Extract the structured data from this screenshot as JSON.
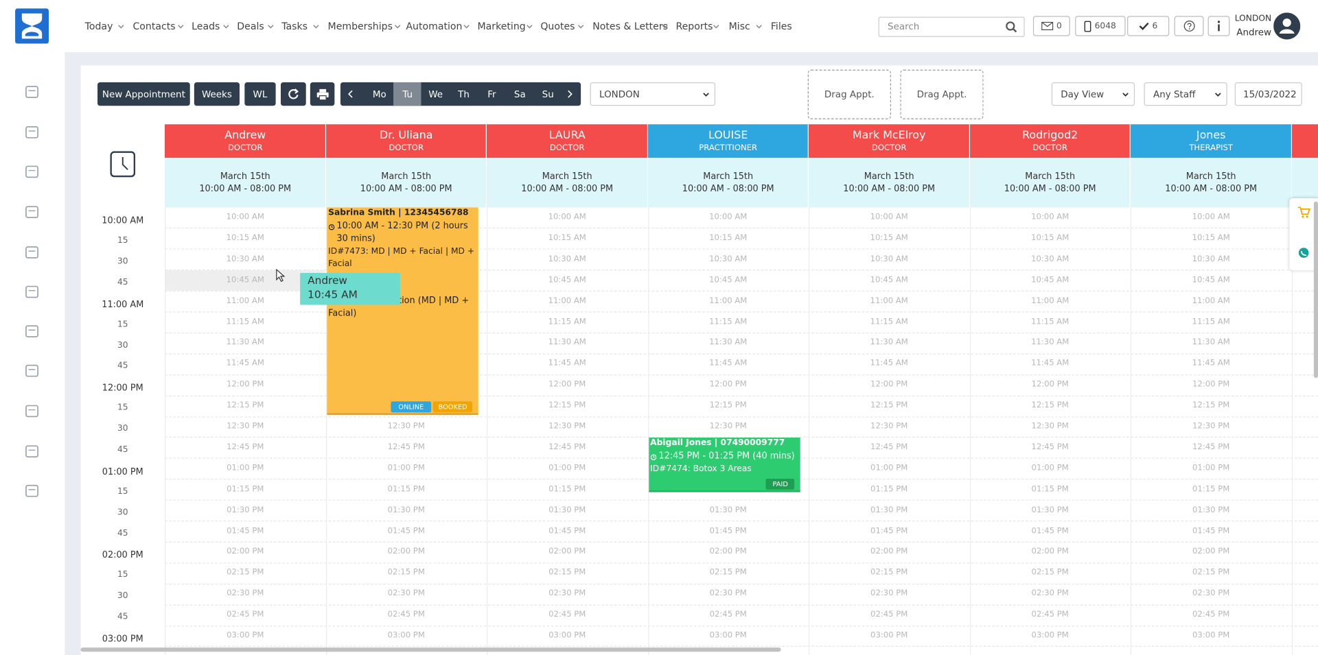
{
  "nav": {
    "items": [
      "Today",
      "Contacts",
      "Leads",
      "Deals",
      "Tasks",
      "Memberships",
      "Automation",
      "Marketing",
      "Quotes",
      "Notes & Letters",
      "Reports",
      "Misc",
      "Files"
    ]
  },
  "header": {
    "search_placeholder": "Search",
    "mail_count": "0",
    "phone_count": "6048",
    "task_count": "6",
    "location": "LONDON",
    "user": "Andrew"
  },
  "toolbar": {
    "buttons": [
      "New Appointment",
      "Weeks",
      "WL"
    ],
    "days": [
      "Mo",
      "Tu",
      "We",
      "Th",
      "Fr",
      "Sa",
      "Su"
    ],
    "active_day": "Tu",
    "location": "LONDON",
    "drag_slots": [
      "Drag Appt.",
      "Drag Appt."
    ],
    "view": "Day View",
    "staff_filter": "Any Staff",
    "date": "15/03/2022"
  },
  "staff": [
    {
      "name": "Andrew",
      "role": "DOCTOR",
      "color": "#f44b4b",
      "date": "March 15th",
      "hours": "10:00 AM - 08:00 PM"
    },
    {
      "name": "Dr. Uliana",
      "role": "DOCTOR",
      "color": "#f44b4b",
      "date": "March 15th",
      "hours": "10:00 AM - 08:00 PM"
    },
    {
      "name": "LAURA",
      "role": "DOCTOR",
      "color": "#f44b4b",
      "date": "March 15th",
      "hours": "10:00 AM - 08:00 PM"
    },
    {
      "name": "LOUISE",
      "role": "PRACTITIONER",
      "color": "#2ea6e0",
      "date": "March 15th",
      "hours": "10:00 AM - 08:00 PM"
    },
    {
      "name": "Mark McElroy",
      "role": "DOCTOR",
      "color": "#f44b4b",
      "date": "March 15th",
      "hours": "10:00 AM - 08:00 PM"
    },
    {
      "name": "Rodrigod2",
      "role": "DOCTOR",
      "color": "#f44b4b",
      "date": "March 15th",
      "hours": "10:00 AM - 08:00 PM"
    },
    {
      "name": "Jones",
      "role": "THERAPIST",
      "color": "#2ea6e0",
      "date": "March 15th",
      "hours": "10:00 AM - 08:00 PM"
    }
  ],
  "time_axis": [
    "10:00 AM",
    "15",
    "30",
    "45",
    "11:00 AM",
    "15",
    "30",
    "45",
    "12:00 PM",
    "15",
    "30",
    "45",
    "01:00 PM",
    "15",
    "30",
    "45",
    "02:00 PM",
    "15",
    "30",
    "45",
    "03:00 PM"
  ],
  "slots": [
    "10:00 AM",
    "10:15 AM",
    "10:30 AM",
    "10:45 AM",
    "11:00 AM",
    "11:15 AM",
    "11:30 AM",
    "11:45 AM",
    "12:00 PM",
    "12:15 PM",
    "12:30 PM",
    "12:45 PM",
    "01:00 PM",
    "01:15 PM",
    "01:30 PM",
    "01:45 PM",
    "02:00 PM",
    "02:15 PM",
    "02:30 PM",
    "02:45 PM",
    "03:00 PM"
  ],
  "appointments": [
    {
      "title": "Sabrina Smith | 12345456788",
      "time": "10:00 AM - 12:30 PM (2 hours 30 mins)",
      "service": "ID#7473: MD | MD + Facial | MD + Facial",
      "note": "Online Consultation (MD | MD + Facial)",
      "badges": [
        "ONLINE",
        "BOOKED"
      ],
      "color": "#fbbd45"
    },
    {
      "title": "Abigail Jones | 07490009777",
      "time": "12:45 PM - 01:25 PM (40 mins)",
      "service": "ID#7474: Botox 3 Areas",
      "badges": [
        "PAID"
      ],
      "color": "#2ecc71"
    }
  ],
  "drag_preview": {
    "name": "Andrew",
    "time": "10:45 AM"
  }
}
